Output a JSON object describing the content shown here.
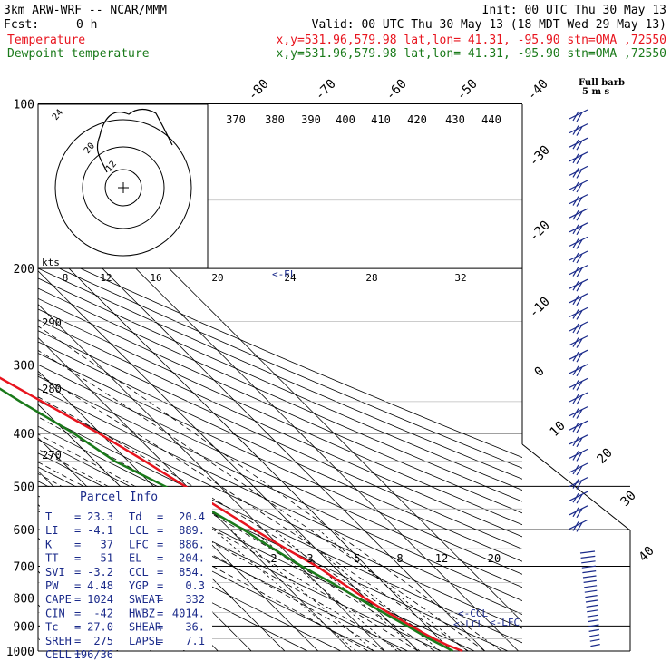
{
  "header": {
    "model": "3km ARW-WRF -- NCAR/MMM",
    "init": "Init: 00 UTC Thu 30 May 13",
    "fcst_label": "Fcst:",
    "fcst_value": "0 h",
    "valid": "Valid: 00 UTC Thu 30 May 13 (18 MDT Wed 29 May 13)",
    "temp_label": "Temperature",
    "dew_label": "Dewpoint temperature",
    "temp_coords": "x,y=531.96,579.98   lat,lon= 41.31, -95.90   stn=OMA ,72550",
    "dew_coords": "x,y=531.96,579.98   lat,lon= 41.31, -95.90   stn=OMA ,72550"
  },
  "colors": {
    "temperature": "#e8141e",
    "dewpoint": "#1a7a1a",
    "info": "#1a2a8a",
    "wind": "#1a2a8a"
  },
  "full_barb_label": "Full barb",
  "full_barb_value": "5 m s",
  "hodograph": {
    "units": "kts",
    "ring_labels": [
      "8",
      "12",
      "16",
      "20",
      "24",
      "28",
      "32"
    ],
    "inner_labels": [
      "24",
      "20",
      "12"
    ]
  },
  "theta_labels": [
    "370",
    "380",
    "390",
    "400",
    "410",
    "420",
    "430",
    "440"
  ],
  "theta_left_labels": [
    "290",
    "280",
    "270"
  ],
  "isotherm_top_labels": [
    "-80",
    "-70",
    "-60",
    "-50",
    "-40"
  ],
  "isotherm_right_labels": [
    "-30",
    "-20",
    "-10",
    "0",
    "10",
    "20",
    "30",
    "40"
  ],
  "mixing_labels": [
    "2",
    "3",
    "5",
    "8",
    "12",
    "20"
  ],
  "parcel_info": {
    "title": "Parcel Info",
    "rows": [
      [
        "T",
        "=",
        "23.3",
        "Td",
        "=",
        "20.4"
      ],
      [
        "LI",
        "=",
        "-4.1",
        "LCL",
        "=",
        "889."
      ],
      [
        "K",
        "=",
        "37",
        "LFC",
        "=",
        "886."
      ],
      [
        "TT",
        "=",
        "51",
        "EL",
        "=",
        "204."
      ],
      [
        "SVI",
        "=",
        "-3.2",
        "CCL",
        "=",
        "854."
      ],
      [
        "PW",
        "=",
        "4.48",
        "YGP",
        "=",
        "0.3"
      ],
      [
        "CAPE",
        "=",
        "1024",
        "SWEAT",
        "=",
        "332"
      ],
      [
        "CIN",
        "=",
        "-42",
        "HWBZ",
        "=",
        "4014."
      ],
      [
        "Tc",
        "=",
        "27.0",
        "SHEAR",
        "=",
        "36."
      ],
      [
        "SREH",
        "=",
        "275",
        "LAPSE",
        "=",
        "7.1"
      ],
      [
        "CELL",
        "=",
        "196/36",
        "",
        "",
        ""
      ]
    ]
  },
  "level_markers": {
    "ccl": "<-CCL",
    "lcl": "<-LCL",
    "lfc": "<-LFC",
    "el": "<-EL"
  },
  "chart_data": {
    "type": "line",
    "y_axis": "pressure (hPa)",
    "pressure_ticks": [
      100,
      200,
      300,
      400,
      500,
      600,
      700,
      800,
      900,
      1000
    ],
    "series": [
      {
        "name": "Temperature",
        "pressure": [
          1000,
          975,
          950,
          925,
          900,
          850,
          800,
          750,
          700,
          650,
          600,
          550,
          500,
          450,
          400,
          350,
          300,
          250,
          225,
          200,
          175,
          150,
          125,
          100
        ],
        "values": [
          23.3,
          20.5,
          18.5,
          16.8,
          15.5,
          12.5,
          9.8,
          7.5,
          5.0,
          1.0,
          -2.8,
          -6.5,
          -10.5,
          -15.0,
          -20.5,
          -28.0,
          -36.5,
          -45.5,
          -50.5,
          -55.5,
          -59.0,
          -60.5,
          -60.0,
          -59.5
        ]
      },
      {
        "name": "Dewpoint temperature",
        "pressure": [
          1000,
          975,
          950,
          925,
          900,
          850,
          800,
          750,
          700,
          650,
          600,
          550,
          500,
          450,
          400,
          350,
          300,
          250,
          225,
          200,
          175,
          150,
          125,
          100
        ],
        "values": [
          20.4,
          18.8,
          17.0,
          15.6,
          14.2,
          11.0,
          7.8,
          4.5,
          0.5,
          -2.8,
          -6.0,
          -10.5,
          -16.5,
          -24.0,
          -28.0,
          -34.5,
          -41.0,
          -49.0,
          -56.0,
          -64.0,
          -71.0,
          -76.0,
          -78.0,
          -80.0
        ]
      }
    ]
  }
}
